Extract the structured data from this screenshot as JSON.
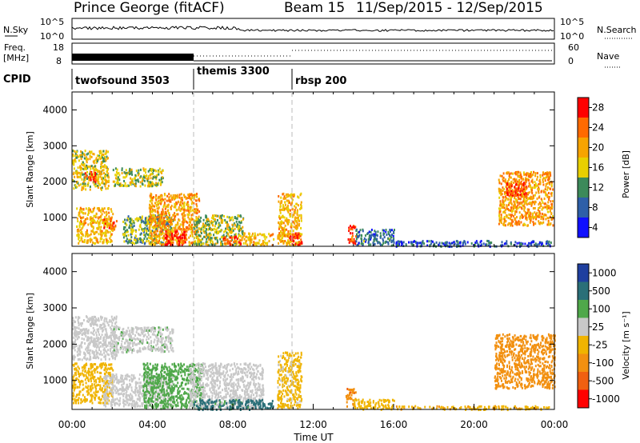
{
  "header": {
    "station": "Prince George (fitACF)",
    "beam": "Beam 15",
    "date_range": "11/Sep/2015 - 12/Sep/2015"
  },
  "panels": {
    "nsky": {
      "label": "N.Sky",
      "ticks": [
        "10^5",
        "10^0"
      ],
      "right_label": "N.Search",
      "right_ticks": [
        "10^5",
        "10^0"
      ]
    },
    "freq": {
      "label_top": "Freq.",
      "label_bottom": "[MHz]",
      "ticks": [
        "18",
        "8"
      ],
      "right_label": "Nave",
      "right_ticks": [
        "60",
        "0"
      ]
    },
    "cpid": {
      "label": "CPID",
      "programs": [
        {
          "name": "twofsound 3503",
          "start_hr": 0,
          "end_hr": 6
        },
        {
          "name": "themis 3300",
          "start_hr": 6,
          "end_hr": 11
        },
        {
          "name": "rbsp 200",
          "start_hr": 11,
          "end_hr": 24
        }
      ]
    }
  },
  "power_colorbar": {
    "label": "Power [dB]",
    "ticks": [
      "28",
      "24",
      "20",
      "16",
      "12",
      "8",
      "4"
    ],
    "colors": [
      "#ff0000",
      "#ff6a00",
      "#f7a400",
      "#e8d000",
      "#3c8a5a",
      "#2e5fa8",
      "#1010ff"
    ]
  },
  "velocity_colorbar": {
    "label": "Velocity [m s⁻¹]",
    "ticks": [
      "1000",
      "500",
      "100",
      "25",
      "-25",
      "-100",
      "-500",
      "-1000"
    ],
    "colors": [
      "#1f3f9f",
      "#2a6f78",
      "#4fa84a",
      "#c8c8c8",
      "#f0b400",
      "#f29010",
      "#f06010",
      "#ff0000"
    ]
  },
  "chart_data": [
    {
      "type": "heatmap",
      "title": "Power",
      "xlabel": "",
      "ylabel": "Slant Range [km]",
      "xlim": [
        0,
        24
      ],
      "ylim": [
        200,
        4500
      ],
      "yticks": [
        1000,
        2000,
        3000,
        4000
      ],
      "colorbar_label": "Power [dB]",
      "colorbar_range": [
        0,
        30
      ],
      "regions": [
        {
          "t": [
            0.0,
            1.8
          ],
          "range": [
            1800,
            2900
          ],
          "value": 16
        },
        {
          "t": [
            0.2,
            2.0
          ],
          "range": [
            300,
            1300
          ],
          "value": 18
        },
        {
          "t": [
            0.6,
            1.2
          ],
          "range": [
            2000,
            2300
          ],
          "value": 26
        },
        {
          "t": [
            1.5,
            2.2
          ],
          "range": [
            700,
            1000
          ],
          "value": 24
        },
        {
          "t": [
            2.0,
            4.5
          ],
          "range": [
            1900,
            2400
          ],
          "value": 14
        },
        {
          "t": [
            2.5,
            5.0
          ],
          "range": [
            300,
            1100
          ],
          "value": 12
        },
        {
          "t": [
            3.8,
            6.3
          ],
          "range": [
            250,
            1700
          ],
          "value": 20
        },
        {
          "t": [
            4.6,
            5.6
          ],
          "range": [
            250,
            650
          ],
          "value": 28
        },
        {
          "t": [
            6.0,
            8.5
          ],
          "range": [
            250,
            1100
          ],
          "value": 14
        },
        {
          "t": [
            7.5,
            8.4
          ],
          "range": [
            250,
            500
          ],
          "value": 26
        },
        {
          "t": [
            8.5,
            10.0
          ],
          "range": [
            250,
            600
          ],
          "value": 18
        },
        {
          "t": [
            10.2,
            11.4
          ],
          "range": [
            250,
            1700
          ],
          "value": 18
        },
        {
          "t": [
            10.8,
            11.4
          ],
          "range": [
            250,
            600
          ],
          "value": 28
        },
        {
          "t": [
            13.7,
            14.1
          ],
          "range": [
            300,
            800
          ],
          "value": 26
        },
        {
          "t": [
            14.1,
            16.0
          ],
          "range": [
            250,
            700
          ],
          "value": 8
        },
        {
          "t": [
            16.0,
            23.8
          ],
          "range": [
            220,
            380
          ],
          "value": 6
        },
        {
          "t": [
            21.2,
            23.9
          ],
          "range": [
            800,
            2300
          ],
          "value": 20
        },
        {
          "t": [
            21.6,
            22.6
          ],
          "range": [
            1600,
            2000
          ],
          "value": 26
        }
      ]
    },
    {
      "type": "heatmap",
      "title": "Velocity",
      "xlabel": "Time UT",
      "ylabel": "Slant Range [km]",
      "xlim": [
        0,
        24
      ],
      "ylim": [
        200,
        4500
      ],
      "xticks": [
        "00:00",
        "04:00",
        "08:00",
        "12:00",
        "16:00",
        "20:00",
        "00:00"
      ],
      "yticks": [
        1000,
        2000,
        3000,
        4000
      ],
      "colorbar_label": "Velocity [m s⁻¹]",
      "colorbar_range": [
        -1000,
        1000
      ],
      "regions": [
        {
          "t": [
            0.0,
            2.2
          ],
          "range": [
            1600,
            2800
          ],
          "value": 0
        },
        {
          "t": [
            0.0,
            2.0
          ],
          "range": [
            400,
            1500
          ],
          "value": -60
        },
        {
          "t": [
            2.0,
            5.0
          ],
          "range": [
            1800,
            2500
          ],
          "value": 10
        },
        {
          "t": [
            1.5,
            5.0
          ],
          "range": [
            300,
            1200
          ],
          "value": 0
        },
        {
          "t": [
            3.5,
            6.5
          ],
          "range": [
            250,
            1500
          ],
          "value": 60
        },
        {
          "t": [
            5.8,
            9.5
          ],
          "range": [
            250,
            1500
          ],
          "value": 0
        },
        {
          "t": [
            6.0,
            10.0
          ],
          "range": [
            220,
            500
          ],
          "value": 150
        },
        {
          "t": [
            10.2,
            11.4
          ],
          "range": [
            250,
            1800
          ],
          "value": -40
        },
        {
          "t": [
            13.6,
            14.1
          ],
          "range": [
            300,
            800
          ],
          "value": -400
        },
        {
          "t": [
            14.0,
            16.0
          ],
          "range": [
            220,
            500
          ],
          "value": -50
        },
        {
          "t": [
            16.0,
            23.8
          ],
          "range": [
            220,
            320
          ],
          "value": -80
        },
        {
          "t": [
            21.0,
            24.0
          ],
          "range": [
            800,
            2300
          ],
          "value": -300
        }
      ]
    }
  ]
}
